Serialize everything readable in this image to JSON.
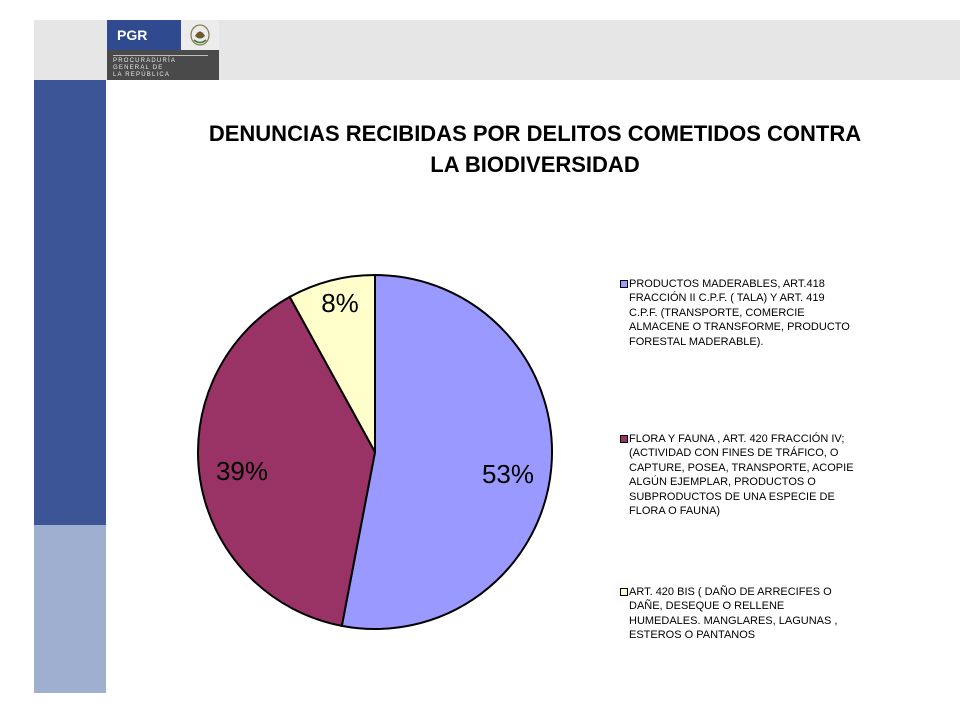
{
  "header": {
    "logo": {
      "abbr": "PGR",
      "subtitle": "PROCURADURÍA\nGENERAL DE\nLA REPÚBLICA"
    }
  },
  "title_line1": "DENUNCIAS RECIBIDAS POR DELITOS COMETIDOS CONTRA",
  "title_line2": "LA BIODIVERSIDAD",
  "colors": {
    "slice1": "#9999ff",
    "slice2": "#993366",
    "slice3": "#ffffcc",
    "left_bar_dark": "#3c5597",
    "left_bar_light": "#9fafcf"
  },
  "chart_data": {
    "type": "pie",
    "slices": [
      {
        "label": "PRODUCTOS MADERABLES, ART.418\nFRACCIÓN II C.P.F. ( TALA) Y ART. 419\nC.P.F. (TRANSPORTE, COMERCIE\nALMACENE O TRANSFORME, PRODUCTO\nFORESTAL MADERABLE).",
        "value": 53,
        "data_label": "53%",
        "color": "#9999ff"
      },
      {
        "label": "FLORA Y  FAUNA , ART. 420 FRACCIÓN IV;\n(ACTIVIDAD CON FINES DE TRÁFICO, O\nCAPTURE, POSEA, TRANSPORTE, ACOPIE\nALGÚN EJEMPLAR, PRODUCTOS O\nSUBPRODUCTOS DE UNA ESPECIE DE\nFLORA O FAUNA)",
        "value": 39,
        "data_label": "39%",
        "color": "#993366"
      },
      {
        "label": "ART. 420 BIS ( DAÑO DE ARRECIFES O\nDAÑE, DESEQUE O RELLENE\nHUMEDALES. MANGLARES, LAGUNAS ,\nESTEROS O PANTANOS",
        "value": 8,
        "data_label": "8%",
        "color": "#ffffcc"
      }
    ],
    "legend_position": "right"
  }
}
